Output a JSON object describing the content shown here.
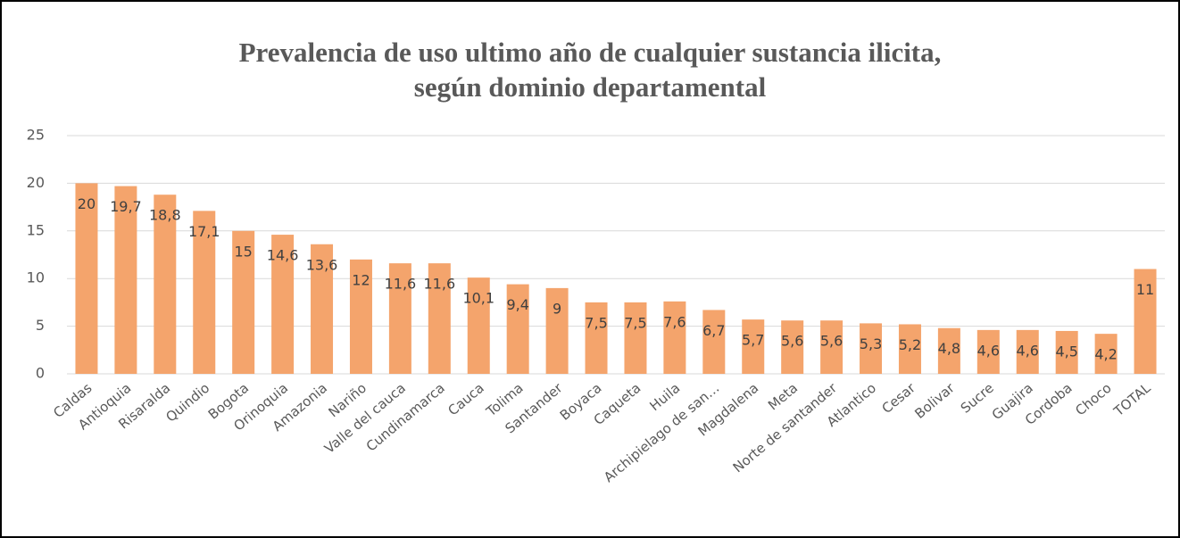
{
  "chart_data": {
    "type": "bar",
    "title": [
      "Prevalencia de uso ultimo año de cualquier sustancia ilicita,",
      "según dominio departamental"
    ],
    "categories": [
      "Caldas",
      "Antioquia",
      "Risaralda",
      "Quindio",
      "Bogota",
      "Orinoquia",
      "Amazonia",
      "Nariño",
      "Valle del cauca",
      "Cundinamarca",
      "Cauca",
      "Tolima",
      "Santander",
      "Boyaca",
      "Caqueta",
      "Huila",
      "Archipielago de san…",
      "Magdalena",
      "Meta",
      "Norte de santander",
      "Atlantico",
      "Cesar",
      "Bolivar",
      "Sucre",
      "Guajira",
      "Cordoba",
      "Choco",
      "TOTAL"
    ],
    "values": [
      20,
      19.7,
      18.8,
      17.1,
      15,
      14.6,
      13.6,
      12,
      11.6,
      11.6,
      10.1,
      9.4,
      9,
      7.5,
      7.5,
      7.6,
      6.7,
      5.7,
      5.6,
      5.6,
      5.3,
      5.2,
      4.8,
      4.6,
      4.6,
      4.5,
      4.2,
      11
    ],
    "value_labels": [
      "20",
      "19,7",
      "18,8",
      "17,1",
      "15",
      "14,6",
      "13,6",
      "12",
      "11,6",
      "11,6",
      "10,1",
      "9,4",
      "9",
      "7,5",
      "7,5",
      "7,6",
      "6,7",
      "5,7",
      "5,6",
      "5,6",
      "5,3",
      "5,2",
      "4,8",
      "4,6",
      "4,6",
      "4,5",
      "4,2",
      "11"
    ],
    "color": "#f4a46c",
    "ylim": [
      0,
      25
    ],
    "yticks": [
      0,
      5,
      10,
      15,
      20,
      25
    ],
    "grid": true
  }
}
